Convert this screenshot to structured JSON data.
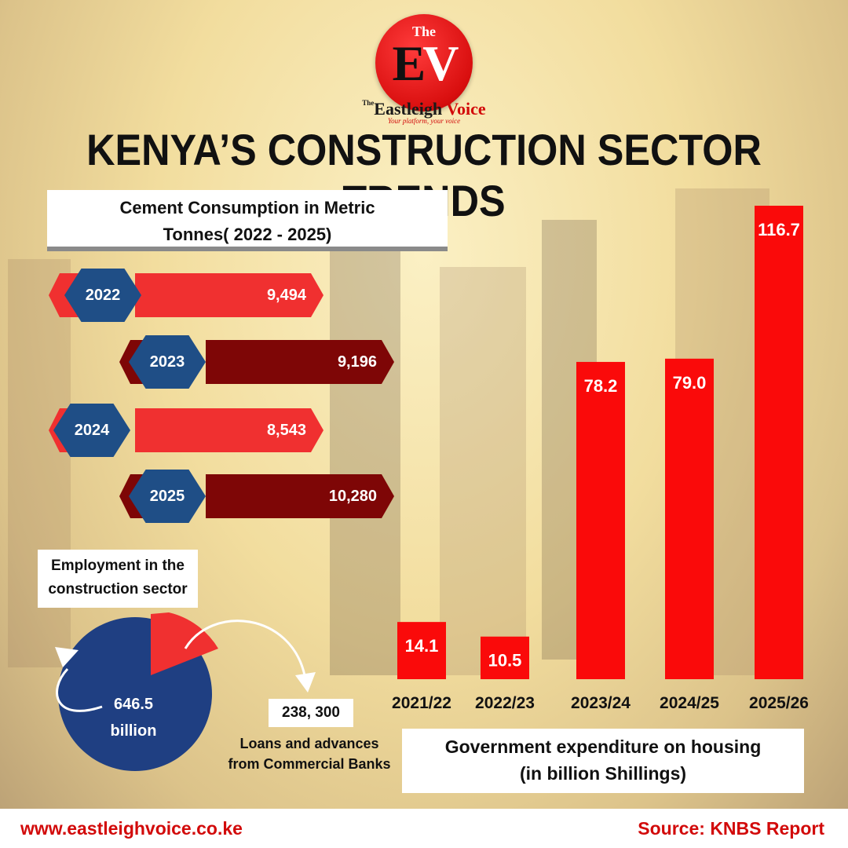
{
  "brand": {
    "logo_the": "The",
    "logo_e": "E",
    "logo_v": "V",
    "name_prefix": "Eastleigh ",
    "name_suffix": "Voice",
    "name_small": "The",
    "tagline": "Your platform, your voice"
  },
  "title": "KENYA’S CONSTRUCTION SECTOR TRENDS",
  "cement": {
    "heading_line1": "Cement Consumption in Metric",
    "heading_line2": "Tonnes( 2022 - 2025)",
    "rows": [
      {
        "year": "2022",
        "value": "9,494"
      },
      {
        "year": "2023",
        "value": "9,196"
      },
      {
        "year": "2024",
        "value": "8,543"
      },
      {
        "year": "2025",
        "value": "10,280"
      }
    ]
  },
  "employment": {
    "heading_line1": "Employment in the",
    "heading_line2": "construction sector",
    "pie_value_line1": "646.5",
    "pie_value_line2": "billion",
    "loans_value": "238, 300",
    "loans_label_line1": "Loans and advances",
    "loans_label_line2": "from Commercial Banks"
  },
  "chart_data": {
    "type": "bar",
    "categories": [
      "2021/22",
      "2022/23",
      "2023/24",
      "2024/25",
      "2025/26"
    ],
    "values": [
      14.1,
      10.5,
      78.2,
      79.0,
      116.7
    ],
    "value_labels": [
      "14.1",
      "10.5",
      "78.2",
      "79.0",
      "116.7"
    ],
    "title_line1": "Government expenditure on housing",
    "title_line2": "(in billion Shillings)",
    "ylim": [
      0,
      116.7
    ],
    "grid": false,
    "bar_color": "#fa0a0a"
  },
  "footer": {
    "url": "www.eastleighvoice.co.ke",
    "source": "Source: KNBS Report"
  },
  "colors": {
    "accent_red": "#f03030",
    "dark_red": "#7e0606",
    "navy": "#1f4e86",
    "footer_red": "#d20a0a"
  }
}
